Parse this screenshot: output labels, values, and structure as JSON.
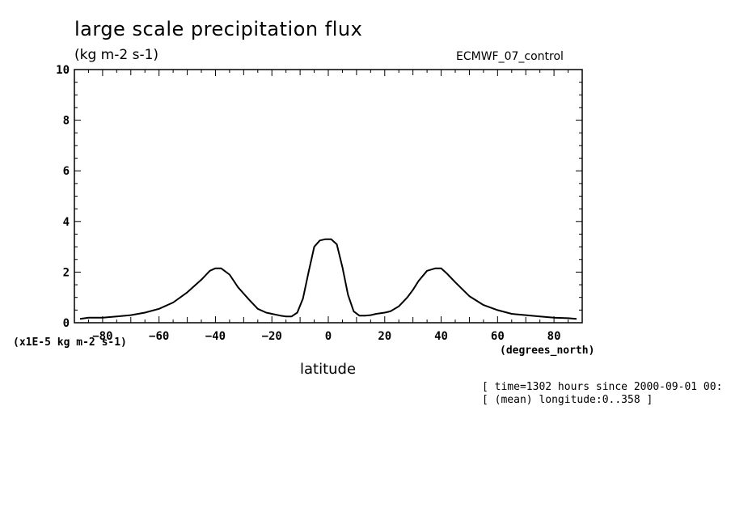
{
  "chart_data": {
    "type": "line",
    "title": "large scale precipitation flux",
    "units_label": "(kg m-2 s-1)",
    "dataset_label": "ECMWF_07_control",
    "y_scale_label": "(x1E-5 kg m-2 s-1)",
    "x_units_label": "(degrees_north)",
    "xlabel": "latitude",
    "ylabel": "",
    "xlim": [
      -90,
      90
    ],
    "ylim": [
      0,
      10
    ],
    "x_ticks": [
      -80,
      -60,
      -40,
      -20,
      0,
      20,
      40,
      60,
      80
    ],
    "x_tick_labels": [
      "-80",
      "-60",
      "-40",
      "-20",
      "0",
      "20",
      "40",
      "60",
      "80"
    ],
    "y_ticks": [
      0,
      2,
      4,
      6,
      8,
      10
    ],
    "y_tick_labels": [
      "0",
      "2",
      "4",
      "6",
      "8",
      "10"
    ],
    "grid": false,
    "series": [
      {
        "x": [
          -88,
          -85,
          -80,
          -75,
          -70,
          -65,
          -60,
          -55,
          -50,
          -45,
          -42,
          -40,
          -38,
          -35,
          -32,
          -28,
          -25,
          -22,
          -20,
          -17,
          -15,
          -13,
          -11,
          -9,
          -7,
          -5,
          -3,
          -1,
          1,
          3,
          5,
          7,
          9,
          11,
          13,
          15,
          17,
          20,
          22,
          25,
          28,
          30,
          32,
          35,
          38,
          40,
          42,
          45,
          50,
          55,
          60,
          65,
          70,
          75,
          80,
          85,
          88
        ],
        "y": [
          0.15,
          0.2,
          0.2,
          0.25,
          0.3,
          0.4,
          0.55,
          0.8,
          1.2,
          1.7,
          2.05,
          2.15,
          2.15,
          1.9,
          1.4,
          0.9,
          0.55,
          0.4,
          0.35,
          0.28,
          0.25,
          0.25,
          0.4,
          0.95,
          2.0,
          3.0,
          3.25,
          3.3,
          3.3,
          3.1,
          2.2,
          1.1,
          0.45,
          0.28,
          0.28,
          0.3,
          0.35,
          0.4,
          0.45,
          0.65,
          1.0,
          1.3,
          1.65,
          2.05,
          2.15,
          2.15,
          1.95,
          1.6,
          1.05,
          0.7,
          0.5,
          0.35,
          0.3,
          0.25,
          0.2,
          0.18,
          0.15
        ]
      }
    ]
  },
  "footer": {
    "line1": "[ time=1302 hours since 2000-09-01 00:",
    "line2": "[ (mean) longitude:0..358 ]"
  },
  "colors": {
    "line": "#000000",
    "axes": "#000000",
    "background": "#ffffff"
  }
}
